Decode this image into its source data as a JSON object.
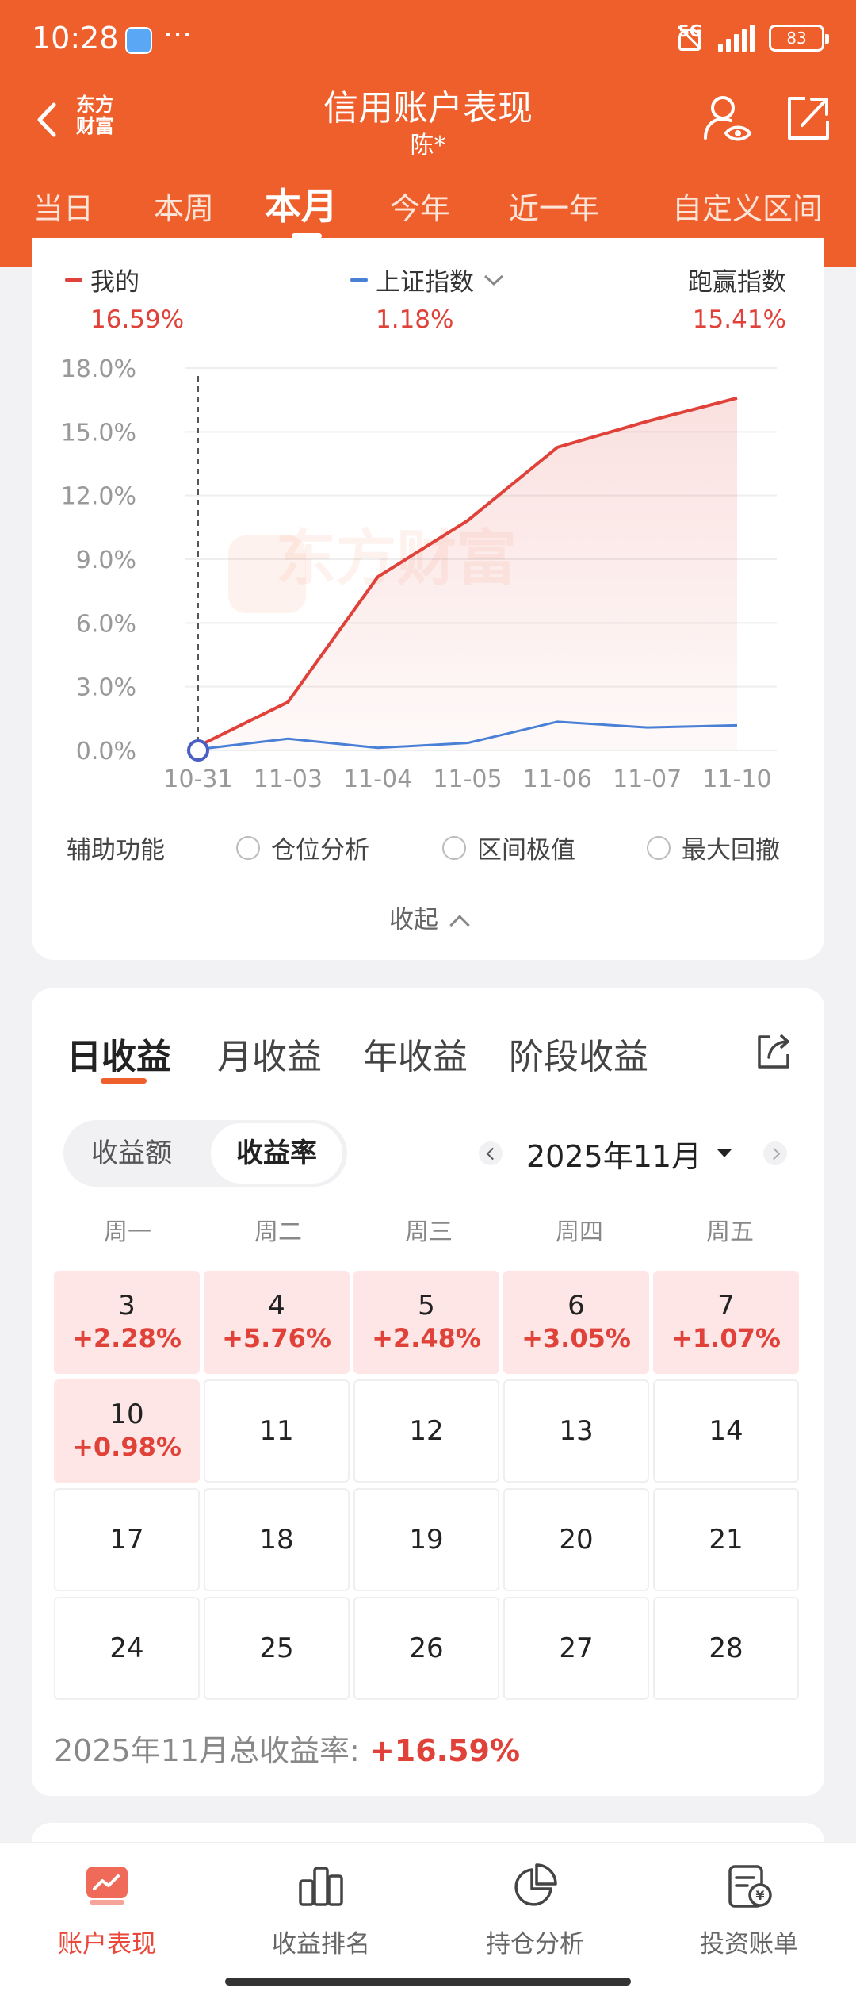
{
  "status_bar": {
    "time": "10:28",
    "dots": "···",
    "network": "5G",
    "battery": "83"
  },
  "header": {
    "logo_line1": "东方",
    "logo_line2": "财富",
    "title": "信用账户表现",
    "subtitle": "陈*"
  },
  "period_tabs": [
    {
      "label": "当日"
    },
    {
      "label": "本周"
    },
    {
      "label": "本月",
      "active": true
    },
    {
      "label": "今年"
    },
    {
      "label": "近一年"
    },
    {
      "label": "自定义区间"
    }
  ],
  "legend": {
    "mine": {
      "label": "我的",
      "value": "16.59%",
      "color": "#e0423a"
    },
    "index": {
      "label": "上证指数",
      "value": "1.18%",
      "color": "#4a7fd6"
    },
    "beat": {
      "label": "跑赢指数",
      "value": "15.41%"
    }
  },
  "chart_data": {
    "type": "line",
    "x": [
      "10-31",
      "11-03",
      "11-04",
      "11-05",
      "11-06",
      "11-07",
      "11-10"
    ],
    "y_ticks": [
      "18.0%",
      "15.0%",
      "12.0%",
      "9.0%",
      "6.0%",
      "3.0%",
      "0.0%"
    ],
    "ylim": [
      0,
      18
    ],
    "series": [
      {
        "name": "我的",
        "color": "#e0423a",
        "values": [
          0.2,
          2.28,
          8.17,
          10.82,
          14.27,
          15.49,
          16.59
        ]
      },
      {
        "name": "上证指数",
        "color": "#4a7fd6",
        "values": [
          0.05,
          0.55,
          0.12,
          0.35,
          1.35,
          1.08,
          1.18
        ]
      }
    ],
    "watermark": "东方财富"
  },
  "aux": {
    "label": "辅助功能",
    "options": [
      "仓位分析",
      "区间极值",
      "最大回撤"
    ],
    "collapse": "收起"
  },
  "returns": {
    "tabs": [
      {
        "label": "日收益",
        "active": true
      },
      {
        "label": "月收益"
      },
      {
        "label": "年收益"
      },
      {
        "label": "阶段收益"
      }
    ],
    "segment": {
      "amount": "收益额",
      "rate": "收益率"
    },
    "month": "2025年11月",
    "weekdays": [
      "周一",
      "周二",
      "周三",
      "周四",
      "周五"
    ],
    "days": [
      {
        "day": "3",
        "rate": "+2.28%"
      },
      {
        "day": "4",
        "rate": "+5.76%"
      },
      {
        "day": "5",
        "rate": "+2.48%"
      },
      {
        "day": "6",
        "rate": "+3.05%"
      },
      {
        "day": "7",
        "rate": "+1.07%"
      },
      {
        "day": "10",
        "rate": "+0.98%"
      },
      {
        "day": "11"
      },
      {
        "day": "12"
      },
      {
        "day": "13"
      },
      {
        "day": "14"
      },
      {
        "day": "17"
      },
      {
        "day": "18"
      },
      {
        "day": "19"
      },
      {
        "day": "20"
      },
      {
        "day": "21"
      },
      {
        "day": "24"
      },
      {
        "day": "25"
      },
      {
        "day": "26"
      },
      {
        "day": "27"
      },
      {
        "day": "28"
      }
    ],
    "total_label": "2025年11月总收益率: ",
    "total_value": "+16.59%"
  },
  "bottom_nav": [
    {
      "label": "账户表现",
      "icon": "chart-monitor-icon",
      "active": true
    },
    {
      "label": "收益排名",
      "icon": "bar-rank-icon"
    },
    {
      "label": "持仓分析",
      "icon": "pie-chart-icon"
    },
    {
      "label": "投资账单",
      "icon": "bill-icon"
    }
  ]
}
